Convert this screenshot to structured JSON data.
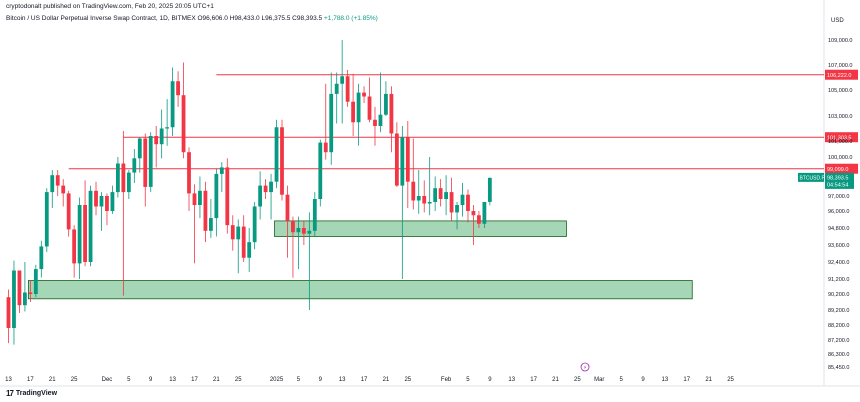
{
  "header": {
    "published": "cryptodonalt published on TradingView.com, Feb 20, 2025 20:05 UTC+1",
    "symbol_line": "Bitcoin / US Dollar Perpetual Inverse Swap Contract, 1D, BITMEX",
    "ohlc": "O96,606.0  H98,433.0  L96,375.5  C98,393.5",
    "change": "+1,788.0 (+1.85%)"
  },
  "footer": {
    "brand": "TradingView",
    "logo_glyph": "17"
  },
  "chart_data": {
    "type": "candlestick",
    "currency": "USD",
    "y_ticks": [
      {
        "label": "109,000.0",
        "value": 109000
      },
      {
        "label": "107,000.0",
        "value": 107000
      },
      {
        "label": "105,000.0",
        "value": 105000
      },
      {
        "label": "103,000.0",
        "value": 103000
      },
      {
        "label": "101,000.0",
        "value": 101000
      },
      {
        "label": "100,000.0",
        "value": 100000
      },
      {
        "label": "97,000.0",
        "value": 97000
      },
      {
        "label": "96,000.0",
        "value": 96000
      },
      {
        "label": "94,800.0",
        "value": 94800
      },
      {
        "label": "93,600.0",
        "value": 93600
      },
      {
        "label": "92,400.0",
        "value": 92400
      },
      {
        "label": "91,200.0",
        "value": 91200
      },
      {
        "label": "90,200.0",
        "value": 90200
      },
      {
        "label": "89,200.0",
        "value": 89200
      },
      {
        "label": "88,200.0",
        "value": 88200
      },
      {
        "label": "87,200.0",
        "value": 87200
      },
      {
        "label": "86,300.0",
        "value": 86300
      },
      {
        "label": "85,450.0",
        "value": 85450
      }
    ],
    "x_ticks": [
      {
        "label": "13",
        "bar": 0
      },
      {
        "label": "17",
        "bar": 4
      },
      {
        "label": "21",
        "bar": 8
      },
      {
        "label": "25",
        "bar": 12
      },
      {
        "label": "Dec",
        "bar": 18
      },
      {
        "label": "5",
        "bar": 22
      },
      {
        "label": "9",
        "bar": 26
      },
      {
        "label": "13",
        "bar": 30
      },
      {
        "label": "17",
        "bar": 34
      },
      {
        "label": "21",
        "bar": 38
      },
      {
        "label": "25",
        "bar": 42
      },
      {
        "label": "2025",
        "bar": 49
      },
      {
        "label": "5",
        "bar": 53
      },
      {
        "label": "9",
        "bar": 57
      },
      {
        "label": "13",
        "bar": 61
      },
      {
        "label": "17",
        "bar": 65
      },
      {
        "label": "21",
        "bar": 69
      },
      {
        "label": "25",
        "bar": 73
      },
      {
        "label": "Feb",
        "bar": 80
      },
      {
        "label": "5",
        "bar": 84
      },
      {
        "label": "9",
        "bar": 88
      },
      {
        "label": "13",
        "bar": 92
      },
      {
        "label": "17",
        "bar": 96
      },
      {
        "label": "21",
        "bar": 100
      },
      {
        "label": "25",
        "bar": 104
      },
      {
        "label": "Mar",
        "bar": 108
      },
      {
        "label": "5",
        "bar": 112
      },
      {
        "label": "9",
        "bar": 116
      },
      {
        "label": "13",
        "bar": 120
      },
      {
        "label": "17",
        "bar": 124
      },
      {
        "label": "21",
        "bar": 128
      },
      {
        "label": "25",
        "bar": 132
      }
    ],
    "resistance_lines": [
      {
        "value": 106222,
        "label": "106,222.0"
      },
      {
        "value": 101303.5,
        "label": "101,303.5"
      },
      {
        "value": 99099,
        "label": "99,099.0"
      }
    ],
    "support_zones": [
      {
        "from_bar": 4,
        "to_bar": 125,
        "low": 89900,
        "high": 91100
      },
      {
        "from_bar": 49,
        "to_bar": 102,
        "low": 94200,
        "high": 95300
      }
    ],
    "price_label": {
      "symbol": "BTCUSD.P",
      "price": "98,393.5",
      "countdown": "04:54:54"
    },
    "markers": [
      {
        "bar": 99,
        "glyph": "⚡"
      }
    ],
    "colors": {
      "up": "#089981",
      "down": "#f23645",
      "zone_fill": "#a5d6b5",
      "zone_border": "#1b5e20",
      "line": "#f23645"
    },
    "candles": [
      [
        90000,
        90500,
        87000,
        88000
      ],
      [
        88000,
        92500,
        86900,
        91800
      ],
      [
        91800,
        91700,
        89000,
        89500
      ],
      [
        89500,
        92400,
        89100,
        90300
      ],
      [
        90300,
        91100,
        89700,
        90200
      ],
      [
        90200,
        92200,
        90000,
        91900
      ],
      [
        91900,
        93900,
        91300,
        93500
      ],
      [
        93500,
        97600,
        93100,
        97300
      ],
      [
        97300,
        99000,
        96200,
        98600
      ],
      [
        98600,
        99000,
        97000,
        97800
      ],
      [
        97800,
        98300,
        96300,
        97200
      ],
      [
        97200,
        97400,
        94200,
        94700
      ],
      [
        94700,
        95000,
        91300,
        92300
      ],
      [
        92300,
        96900,
        91200,
        96400
      ],
      [
        96400,
        98200,
        92100,
        92400
      ],
      [
        92400,
        97800,
        92100,
        97400
      ],
      [
        97400,
        98100,
        95700,
        96300
      ],
      [
        96300,
        97300,
        94600,
        97000
      ],
      [
        97000,
        97200,
        95000,
        96000
      ],
      [
        96000,
        97800,
        95800,
        97300
      ],
      [
        97300,
        100000,
        96900,
        99500
      ],
      [
        99500,
        101800,
        90100,
        97300
      ],
      [
        97300,
        99000,
        96800,
        98800
      ],
      [
        98800,
        100500,
        98000,
        99900
      ],
      [
        99900,
        101300,
        98800,
        101200
      ],
      [
        101200,
        101600,
        96300,
        97700
      ],
      [
        97700,
        101700,
        97300,
        101400
      ],
      [
        101400,
        102200,
        99200,
        100800
      ],
      [
        100800,
        103500,
        99900,
        102000
      ],
      [
        102000,
        104300,
        100700,
        102100
      ],
      [
        102100,
        106800,
        101400,
        105700
      ],
      [
        105700,
        106500,
        103700,
        104600
      ],
      [
        104600,
        107200,
        99900,
        100300
      ],
      [
        100300,
        100600,
        96000,
        97200
      ],
      [
        97200,
        97900,
        92300,
        96400
      ],
      [
        96400,
        98500,
        95500,
        97400
      ],
      [
        97400,
        98100,
        93800,
        94600
      ],
      [
        94600,
        96800,
        94100,
        95500
      ],
      [
        95500,
        99100,
        94200,
        98700
      ],
      [
        98700,
        99600,
        97300,
        99200
      ],
      [
        99200,
        99900,
        94400,
        95000
      ],
      [
        95000,
        95700,
        93200,
        94000
      ],
      [
        94000,
        95400,
        91600,
        94900
      ],
      [
        94900,
        95700,
        92400,
        92700
      ],
      [
        92700,
        94800,
        91700,
        93800
      ],
      [
        93800,
        96600,
        93300,
        96300
      ],
      [
        96300,
        98900,
        95400,
        97800
      ],
      [
        97800,
        98300,
        96800,
        97300
      ],
      [
        97300,
        98700,
        95400,
        98100
      ],
      [
        98100,
        102700,
        97600,
        102100
      ],
      [
        102100,
        102700,
        96700,
        97100
      ],
      [
        97100,
        97800,
        92700,
        95300
      ],
      [
        95300,
        95600,
        91300,
        94500
      ],
      [
        94500,
        95600,
        91900,
        94800
      ],
      [
        94800,
        95300,
        93600,
        94400
      ],
      [
        94400,
        95900,
        89200,
        94600
      ],
      [
        94600,
        97300,
        94200,
        96800
      ],
      [
        96800,
        101100,
        96300,
        100900
      ],
      [
        100900,
        105500,
        99800,
        100300
      ],
      [
        100300,
        106400,
        99400,
        104700
      ],
      [
        104700,
        106400,
        102400,
        105500
      ],
      [
        105500,
        109000,
        102400,
        106100
      ],
      [
        106100,
        106600,
        103700,
        104100
      ],
      [
        104100,
        106300,
        101400,
        102500
      ],
      [
        102500,
        105500,
        100700,
        104800
      ],
      [
        104800,
        105300,
        104000,
        104500
      ],
      [
        104500,
        106000,
        102500,
        102700
      ],
      [
        102700,
        103700,
        100700,
        102200
      ],
      [
        102200,
        106400,
        101700,
        103100
      ],
      [
        103100,
        105700,
        103000,
        104700
      ],
      [
        104700,
        105300,
        100300,
        101600
      ],
      [
        101600,
        102500,
        97700,
        97800
      ],
      [
        97800,
        102200,
        91200,
        101300
      ],
      [
        101300,
        102600,
        96200,
        98100
      ],
      [
        98100,
        101200,
        96100,
        96700
      ],
      [
        96700,
        99000,
        95800,
        97000
      ],
      [
        97000,
        98200,
        95900,
        96500
      ],
      [
        96500,
        100000,
        95700,
        96600
      ],
      [
        96600,
        98500,
        96000,
        97600
      ],
      [
        97600,
        98300,
        96300,
        96800
      ],
      [
        96800,
        98600,
        95700,
        97300
      ],
      [
        97300,
        98400,
        95300,
        95900
      ],
      [
        95900,
        96600,
        94700,
        96400
      ],
      [
        96400,
        98000,
        95600,
        97100
      ],
      [
        97100,
        97500,
        95200,
        96000
      ],
      [
        96000,
        96400,
        93600,
        95700
      ],
      [
        95700,
        96000,
        94800,
        95100
      ],
      [
        95100,
        96500,
        94800,
        96600
      ],
      [
        96606,
        98433,
        96375.5,
        98393.5
      ]
    ]
  }
}
